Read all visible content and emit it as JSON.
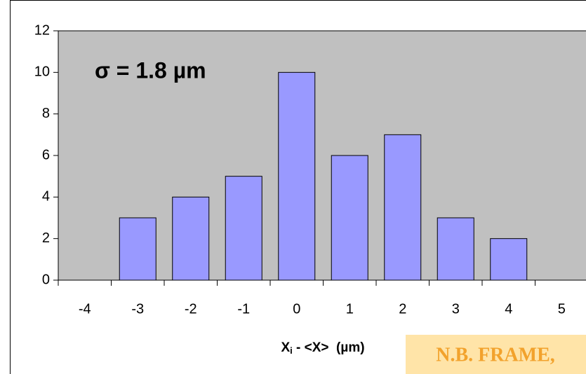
{
  "chart_data": {
    "type": "bar",
    "categories": [
      "-4",
      "-3",
      "-2",
      "-1",
      "0",
      "1",
      "2",
      "3",
      "4",
      "5"
    ],
    "values": [
      0,
      3,
      4,
      5,
      10,
      6,
      7,
      3,
      2,
      0
    ],
    "color": "#9999ff",
    "ylim": [
      0,
      12
    ],
    "yticks": [
      0,
      2,
      4,
      6,
      8,
      10,
      12
    ],
    "xlabel": {
      "main": "X",
      "sub": "i",
      "rest": " - <X>  (µm)"
    },
    "annotation": "σ = 1.8 µm",
    "note": "N.B. FRAME,"
  }
}
